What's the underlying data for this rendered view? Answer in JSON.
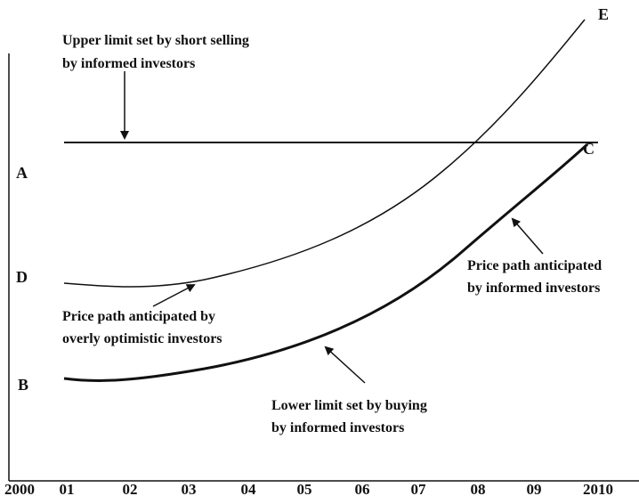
{
  "labels": {
    "upper_limit": [
      "Upper limit set by short selling",
      "by informed investors"
    ],
    "optimistic": [
      "Price path  anticipated by",
      "overly optimistic investors"
    ],
    "informed": [
      "Price path anticipated",
      "by informed investors"
    ],
    "lower_limit": [
      "Lower limit set by buying",
      "by informed investors"
    ],
    "points": {
      "A": "A",
      "B": "B",
      "C": "C",
      "D": "D",
      "E": "E"
    }
  },
  "x_axis": [
    "2000",
    "01",
    "02",
    "03",
    "04",
    "05",
    "06",
    "07",
    "08",
    "09",
    "2010"
  ]
}
